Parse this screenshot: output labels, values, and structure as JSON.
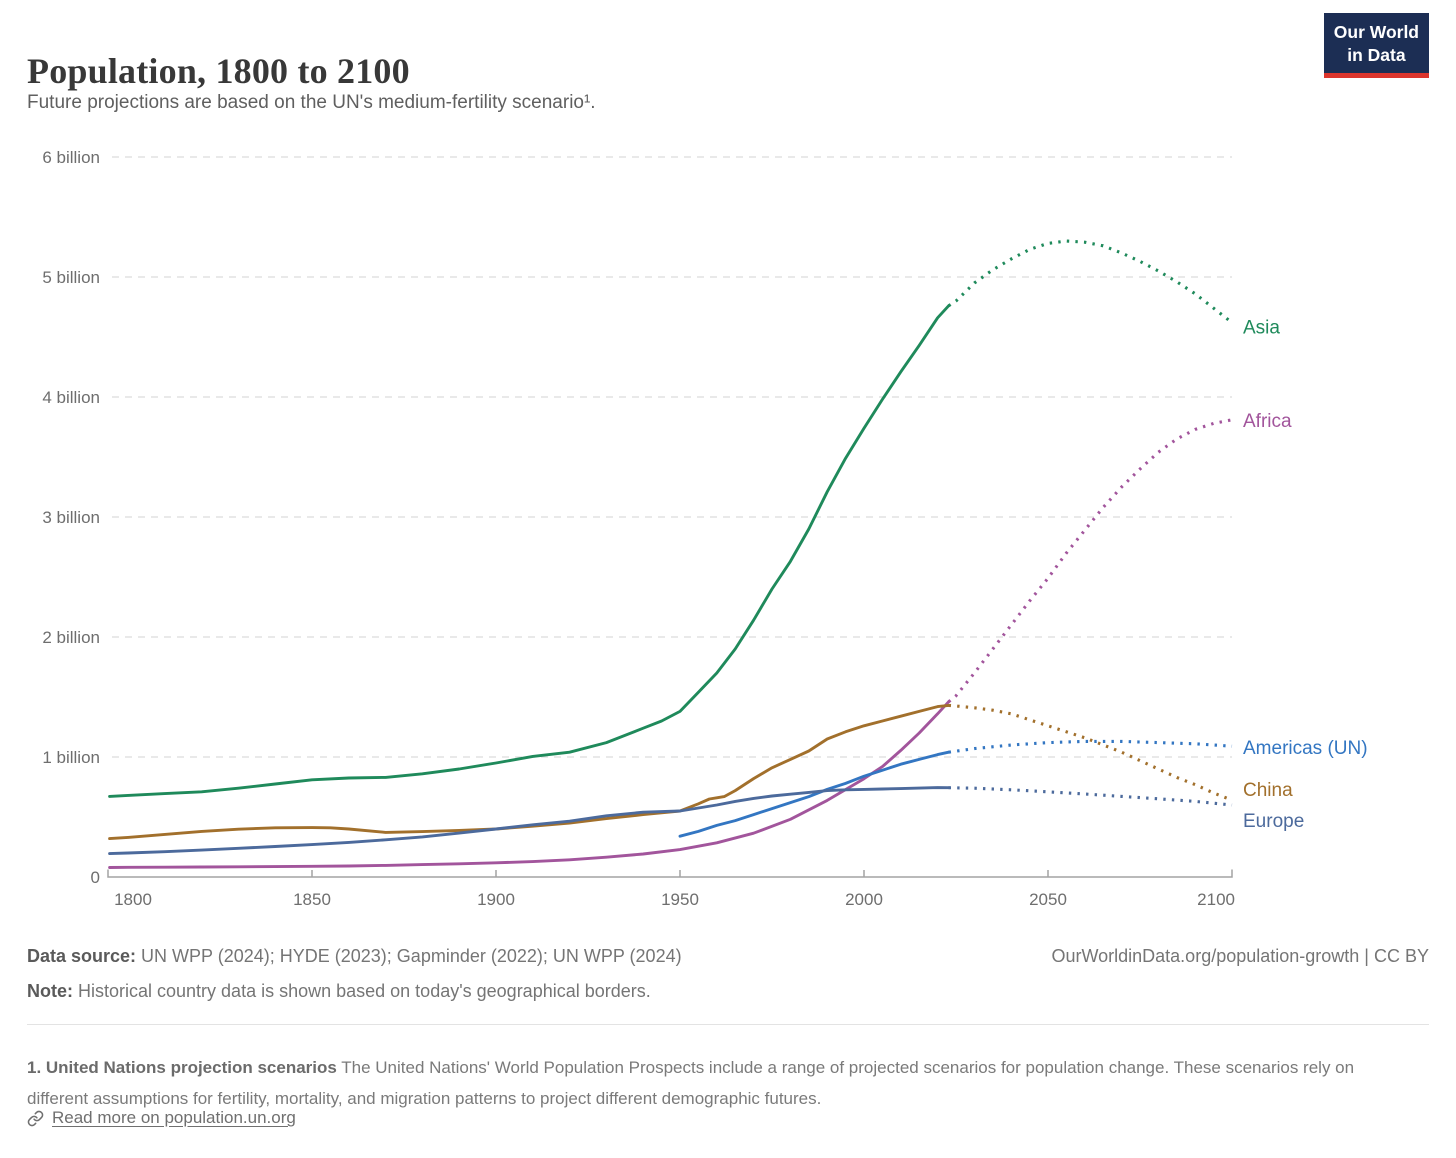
{
  "header": {
    "title": "Population, 1800 to 2100",
    "subtitle": "Future projections are based on the UN's medium-fertility scenario¹.",
    "logo_line1": "Our World",
    "logo_line2": "in Data"
  },
  "footer": {
    "datasource_label": "Data source:",
    "datasource": " UN WPP (2024); HYDE (2023); Gapminder (2022); UN WPP (2024)",
    "note_label": "Note:",
    "note": " Historical country data is shown based on today's geographical borders.",
    "attribution": "OurWorldinData.org/population-growth | CC BY"
  },
  "footnote": {
    "label": "1. United Nations projection scenarios",
    "text": " The United Nations' World Population Prospects include a range of projected scenarios for population change. These scenarios rely on different assumptions for fertility, mortality, and migration patterns to project different demographic futures.",
    "link": "Read more on population.un.org"
  },
  "chart_data": {
    "type": "line",
    "title": "Population, 1800 to 2100",
    "xlabel": "",
    "ylabel": "",
    "units": "billion people",
    "xlim": [
      1795,
      2100
    ],
    "ylim": [
      0,
      6
    ],
    "x_ticks": [
      1800,
      1850,
      1900,
      1950,
      2000,
      2050,
      2100
    ],
    "y_ticks": [
      "0",
      "1 billion",
      "2 billion",
      "3 billion",
      "4 billion",
      "5 billion",
      "6 billion"
    ],
    "grid": "horizontal-dashed",
    "legend_position": "line-end-labels-right",
    "projection_style": "dotted segments from ~2023 are UN medium-fertility projections",
    "series": [
      {
        "name": "Asia",
        "label": "Asia",
        "color": "#1F8A5B",
        "label_dy": 4,
        "history": [
          [
            1795,
            0.672
          ],
          [
            1800,
            0.68
          ],
          [
            1810,
            0.695
          ],
          [
            1820,
            0.71
          ],
          [
            1830,
            0.74
          ],
          [
            1840,
            0.775
          ],
          [
            1850,
            0.81
          ],
          [
            1860,
            0.825
          ],
          [
            1870,
            0.83
          ],
          [
            1880,
            0.86
          ],
          [
            1890,
            0.9
          ],
          [
            1900,
            0.95
          ],
          [
            1910,
            1.005
          ],
          [
            1920,
            1.04
          ],
          [
            1930,
            1.12
          ],
          [
            1940,
            1.24
          ],
          [
            1945,
            1.3
          ],
          [
            1950,
            1.38
          ],
          [
            1955,
            1.54
          ],
          [
            1960,
            1.7
          ],
          [
            1965,
            1.9
          ],
          [
            1970,
            2.14
          ],
          [
            1975,
            2.4
          ],
          [
            1980,
            2.63
          ],
          [
            1985,
            2.9
          ],
          [
            1990,
            3.21
          ],
          [
            1995,
            3.49
          ],
          [
            2000,
            3.74
          ],
          [
            2005,
            3.98
          ],
          [
            2010,
            4.21
          ],
          [
            2015,
            4.43
          ],
          [
            2020,
            4.66
          ],
          [
            2023,
            4.76
          ]
        ],
        "projection": [
          [
            2025,
            4.8
          ],
          [
            2030,
            4.95
          ],
          [
            2035,
            5.06
          ],
          [
            2040,
            5.15
          ],
          [
            2045,
            5.23
          ],
          [
            2050,
            5.28
          ],
          [
            2055,
            5.3
          ],
          [
            2060,
            5.29
          ],
          [
            2065,
            5.26
          ],
          [
            2070,
            5.2
          ],
          [
            2075,
            5.13
          ],
          [
            2080,
            5.05
          ],
          [
            2085,
            4.96
          ],
          [
            2090,
            4.86
          ],
          [
            2095,
            4.74
          ],
          [
            2100,
            4.62
          ]
        ]
      },
      {
        "name": "Africa",
        "label": "Africa",
        "color": "#A2559C",
        "label_dy": 0,
        "history": [
          [
            1795,
            0.079
          ],
          [
            1800,
            0.081
          ],
          [
            1810,
            0.082
          ],
          [
            1820,
            0.083
          ],
          [
            1830,
            0.085
          ],
          [
            1840,
            0.087
          ],
          [
            1850,
            0.089
          ],
          [
            1860,
            0.092
          ],
          [
            1870,
            0.097
          ],
          [
            1880,
            0.103
          ],
          [
            1890,
            0.11
          ],
          [
            1900,
            0.118
          ],
          [
            1910,
            0.128
          ],
          [
            1920,
            0.143
          ],
          [
            1930,
            0.165
          ],
          [
            1940,
            0.192
          ],
          [
            1950,
            0.228
          ],
          [
            1960,
            0.285
          ],
          [
            1970,
            0.365
          ],
          [
            1980,
            0.481
          ],
          [
            1990,
            0.638
          ],
          [
            2000,
            0.819
          ],
          [
            2005,
            0.92
          ],
          [
            2010,
            1.055
          ],
          [
            2015,
            1.2
          ],
          [
            2020,
            1.36
          ],
          [
            2023,
            1.46
          ]
        ],
        "projection": [
          [
            2025,
            1.51
          ],
          [
            2030,
            1.7
          ],
          [
            2035,
            1.9
          ],
          [
            2040,
            2.1
          ],
          [
            2045,
            2.3
          ],
          [
            2050,
            2.49
          ],
          [
            2055,
            2.7
          ],
          [
            2060,
            2.89
          ],
          [
            2065,
            3.08
          ],
          [
            2070,
            3.25
          ],
          [
            2075,
            3.4
          ],
          [
            2080,
            3.54
          ],
          [
            2085,
            3.65
          ],
          [
            2090,
            3.73
          ],
          [
            2095,
            3.78
          ],
          [
            2100,
            3.81
          ]
        ]
      },
      {
        "name": "Americas (UN)",
        "label": "Americas (UN)",
        "color": "#3376C2",
        "label_dy": 1,
        "history": [
          [
            1950,
            0.34
          ],
          [
            1955,
            0.38
          ],
          [
            1960,
            0.43
          ],
          [
            1965,
            0.47
          ],
          [
            1970,
            0.52
          ],
          [
            1975,
            0.57
          ],
          [
            1980,
            0.62
          ],
          [
            1985,
            0.67
          ],
          [
            1990,
            0.73
          ],
          [
            1995,
            0.78
          ],
          [
            2000,
            0.84
          ],
          [
            2005,
            0.89
          ],
          [
            2010,
            0.94
          ],
          [
            2015,
            0.98
          ],
          [
            2020,
            1.02
          ],
          [
            2023,
            1.04
          ]
        ],
        "projection": [
          [
            2030,
            1.07
          ],
          [
            2040,
            1.1
          ],
          [
            2050,
            1.12
          ],
          [
            2060,
            1.13
          ],
          [
            2070,
            1.13
          ],
          [
            2080,
            1.12
          ],
          [
            2090,
            1.11
          ],
          [
            2100,
            1.09
          ]
        ]
      },
      {
        "name": "China",
        "label": "China",
        "color": "#A2702C",
        "label_dy": -11,
        "history": [
          [
            1795,
            0.32
          ],
          [
            1800,
            0.33
          ],
          [
            1810,
            0.355
          ],
          [
            1820,
            0.38
          ],
          [
            1830,
            0.398
          ],
          [
            1840,
            0.41
          ],
          [
            1850,
            0.412
          ],
          [
            1855,
            0.41
          ],
          [
            1860,
            0.4
          ],
          [
            1870,
            0.372
          ],
          [
            1880,
            0.378
          ],
          [
            1890,
            0.388
          ],
          [
            1900,
            0.4
          ],
          [
            1910,
            0.423
          ],
          [
            1920,
            0.45
          ],
          [
            1930,
            0.487
          ],
          [
            1940,
            0.52
          ],
          [
            1950,
            0.55
          ],
          [
            1955,
            0.61
          ],
          [
            1958,
            0.65
          ],
          [
            1960,
            0.66
          ],
          [
            1962,
            0.67
          ],
          [
            1965,
            0.72
          ],
          [
            1970,
            0.82
          ],
          [
            1975,
            0.91
          ],
          [
            1980,
            0.98
          ],
          [
            1985,
            1.05
          ],
          [
            1990,
            1.15
          ],
          [
            1995,
            1.21
          ],
          [
            2000,
            1.26
          ],
          [
            2005,
            1.3
          ],
          [
            2010,
            1.34
          ],
          [
            2015,
            1.38
          ],
          [
            2020,
            1.42
          ],
          [
            2023,
            1.43
          ]
        ],
        "projection": [
          [
            2025,
            1.425
          ],
          [
            2030,
            1.41
          ],
          [
            2035,
            1.39
          ],
          [
            2040,
            1.36
          ],
          [
            2045,
            1.31
          ],
          [
            2050,
            1.26
          ],
          [
            2055,
            1.21
          ],
          [
            2060,
            1.16
          ],
          [
            2065,
            1.1
          ],
          [
            2070,
            1.04
          ],
          [
            2075,
            0.97
          ],
          [
            2080,
            0.9
          ],
          [
            2085,
            0.83
          ],
          [
            2090,
            0.77
          ],
          [
            2095,
            0.7
          ],
          [
            2100,
            0.64
          ]
        ]
      },
      {
        "name": "Europe",
        "label": "Europe",
        "color": "#4C6A9C",
        "label_dy": 15,
        "history": [
          [
            1795,
            0.195
          ],
          [
            1800,
            0.2
          ],
          [
            1810,
            0.211
          ],
          [
            1820,
            0.224
          ],
          [
            1830,
            0.239
          ],
          [
            1840,
            0.254
          ],
          [
            1850,
            0.27
          ],
          [
            1860,
            0.288
          ],
          [
            1870,
            0.31
          ],
          [
            1880,
            0.334
          ],
          [
            1890,
            0.366
          ],
          [
            1900,
            0.4
          ],
          [
            1910,
            0.435
          ],
          [
            1920,
            0.465
          ],
          [
            1930,
            0.51
          ],
          [
            1940,
            0.54
          ],
          [
            1950,
            0.55
          ],
          [
            1955,
            0.575
          ],
          [
            1960,
            0.6
          ],
          [
            1965,
            0.63
          ],
          [
            1970,
            0.655
          ],
          [
            1975,
            0.675
          ],
          [
            1980,
            0.69
          ],
          [
            1985,
            0.705
          ],
          [
            1990,
            0.72
          ],
          [
            1995,
            0.727
          ],
          [
            2000,
            0.73
          ],
          [
            2005,
            0.733
          ],
          [
            2010,
            0.737
          ],
          [
            2015,
            0.741
          ],
          [
            2020,
            0.745
          ],
          [
            2023,
            0.744
          ]
        ],
        "projection": [
          [
            2030,
            0.74
          ],
          [
            2040,
            0.727
          ],
          [
            2050,
            0.71
          ],
          [
            2060,
            0.692
          ],
          [
            2070,
            0.672
          ],
          [
            2080,
            0.652
          ],
          [
            2090,
            0.63
          ],
          [
            2100,
            0.6
          ]
        ]
      }
    ]
  }
}
